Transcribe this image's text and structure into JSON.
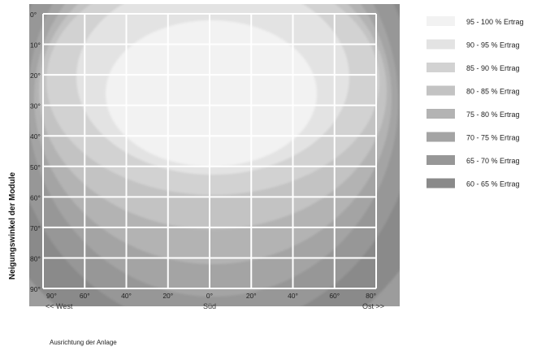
{
  "chart_data": {
    "type": "heatmap",
    "title": "",
    "ylabel": "Neigungswinkel der Module",
    "xlabel": "Ausrichtung der Anlage",
    "x_ticks": [
      "90°",
      "60°",
      "40°",
      "20°",
      "0°",
      "20°",
      "40°",
      "60°",
      "80°"
    ],
    "x_sub_labels": {
      "left": "<< West",
      "center": "Süd",
      "right": "Ost >>"
    },
    "y_ticks": [
      "0°",
      "10°",
      "20°",
      "30°",
      "40°",
      "50°",
      "60°",
      "70°",
      "80°",
      "90°"
    ],
    "legend_position": "right",
    "legend": [
      {
        "label": "95 - 100 % Ertrag",
        "color": "#f2f2f2",
        "min": 95,
        "max": 100
      },
      {
        "label": "90 - 95 % Ertrag",
        "color": "#e3e3e3",
        "min": 90,
        "max": 95
      },
      {
        "label": "85 - 90 % Ertrag",
        "color": "#d2d2d2",
        "min": 85,
        "max": 90
      },
      {
        "label": "80 - 85 % Ertrag",
        "color": "#c3c3c3",
        "min": 80,
        "max": 85
      },
      {
        "label": "75 - 80 % Ertrag",
        "color": "#b3b3b3",
        "min": 75,
        "max": 80
      },
      {
        "label": "70 - 75 % Ertrag",
        "color": "#a4a4a4",
        "min": 70,
        "max": 75
      },
      {
        "label": "65 - 70 % Ertrag",
        "color": "#979797",
        "min": 65,
        "max": 70
      },
      {
        "label": "60 - 65 % Ertrag",
        "color": "#8a8a8a",
        "min": 60,
        "max": 65
      }
    ],
    "grid": true
  }
}
